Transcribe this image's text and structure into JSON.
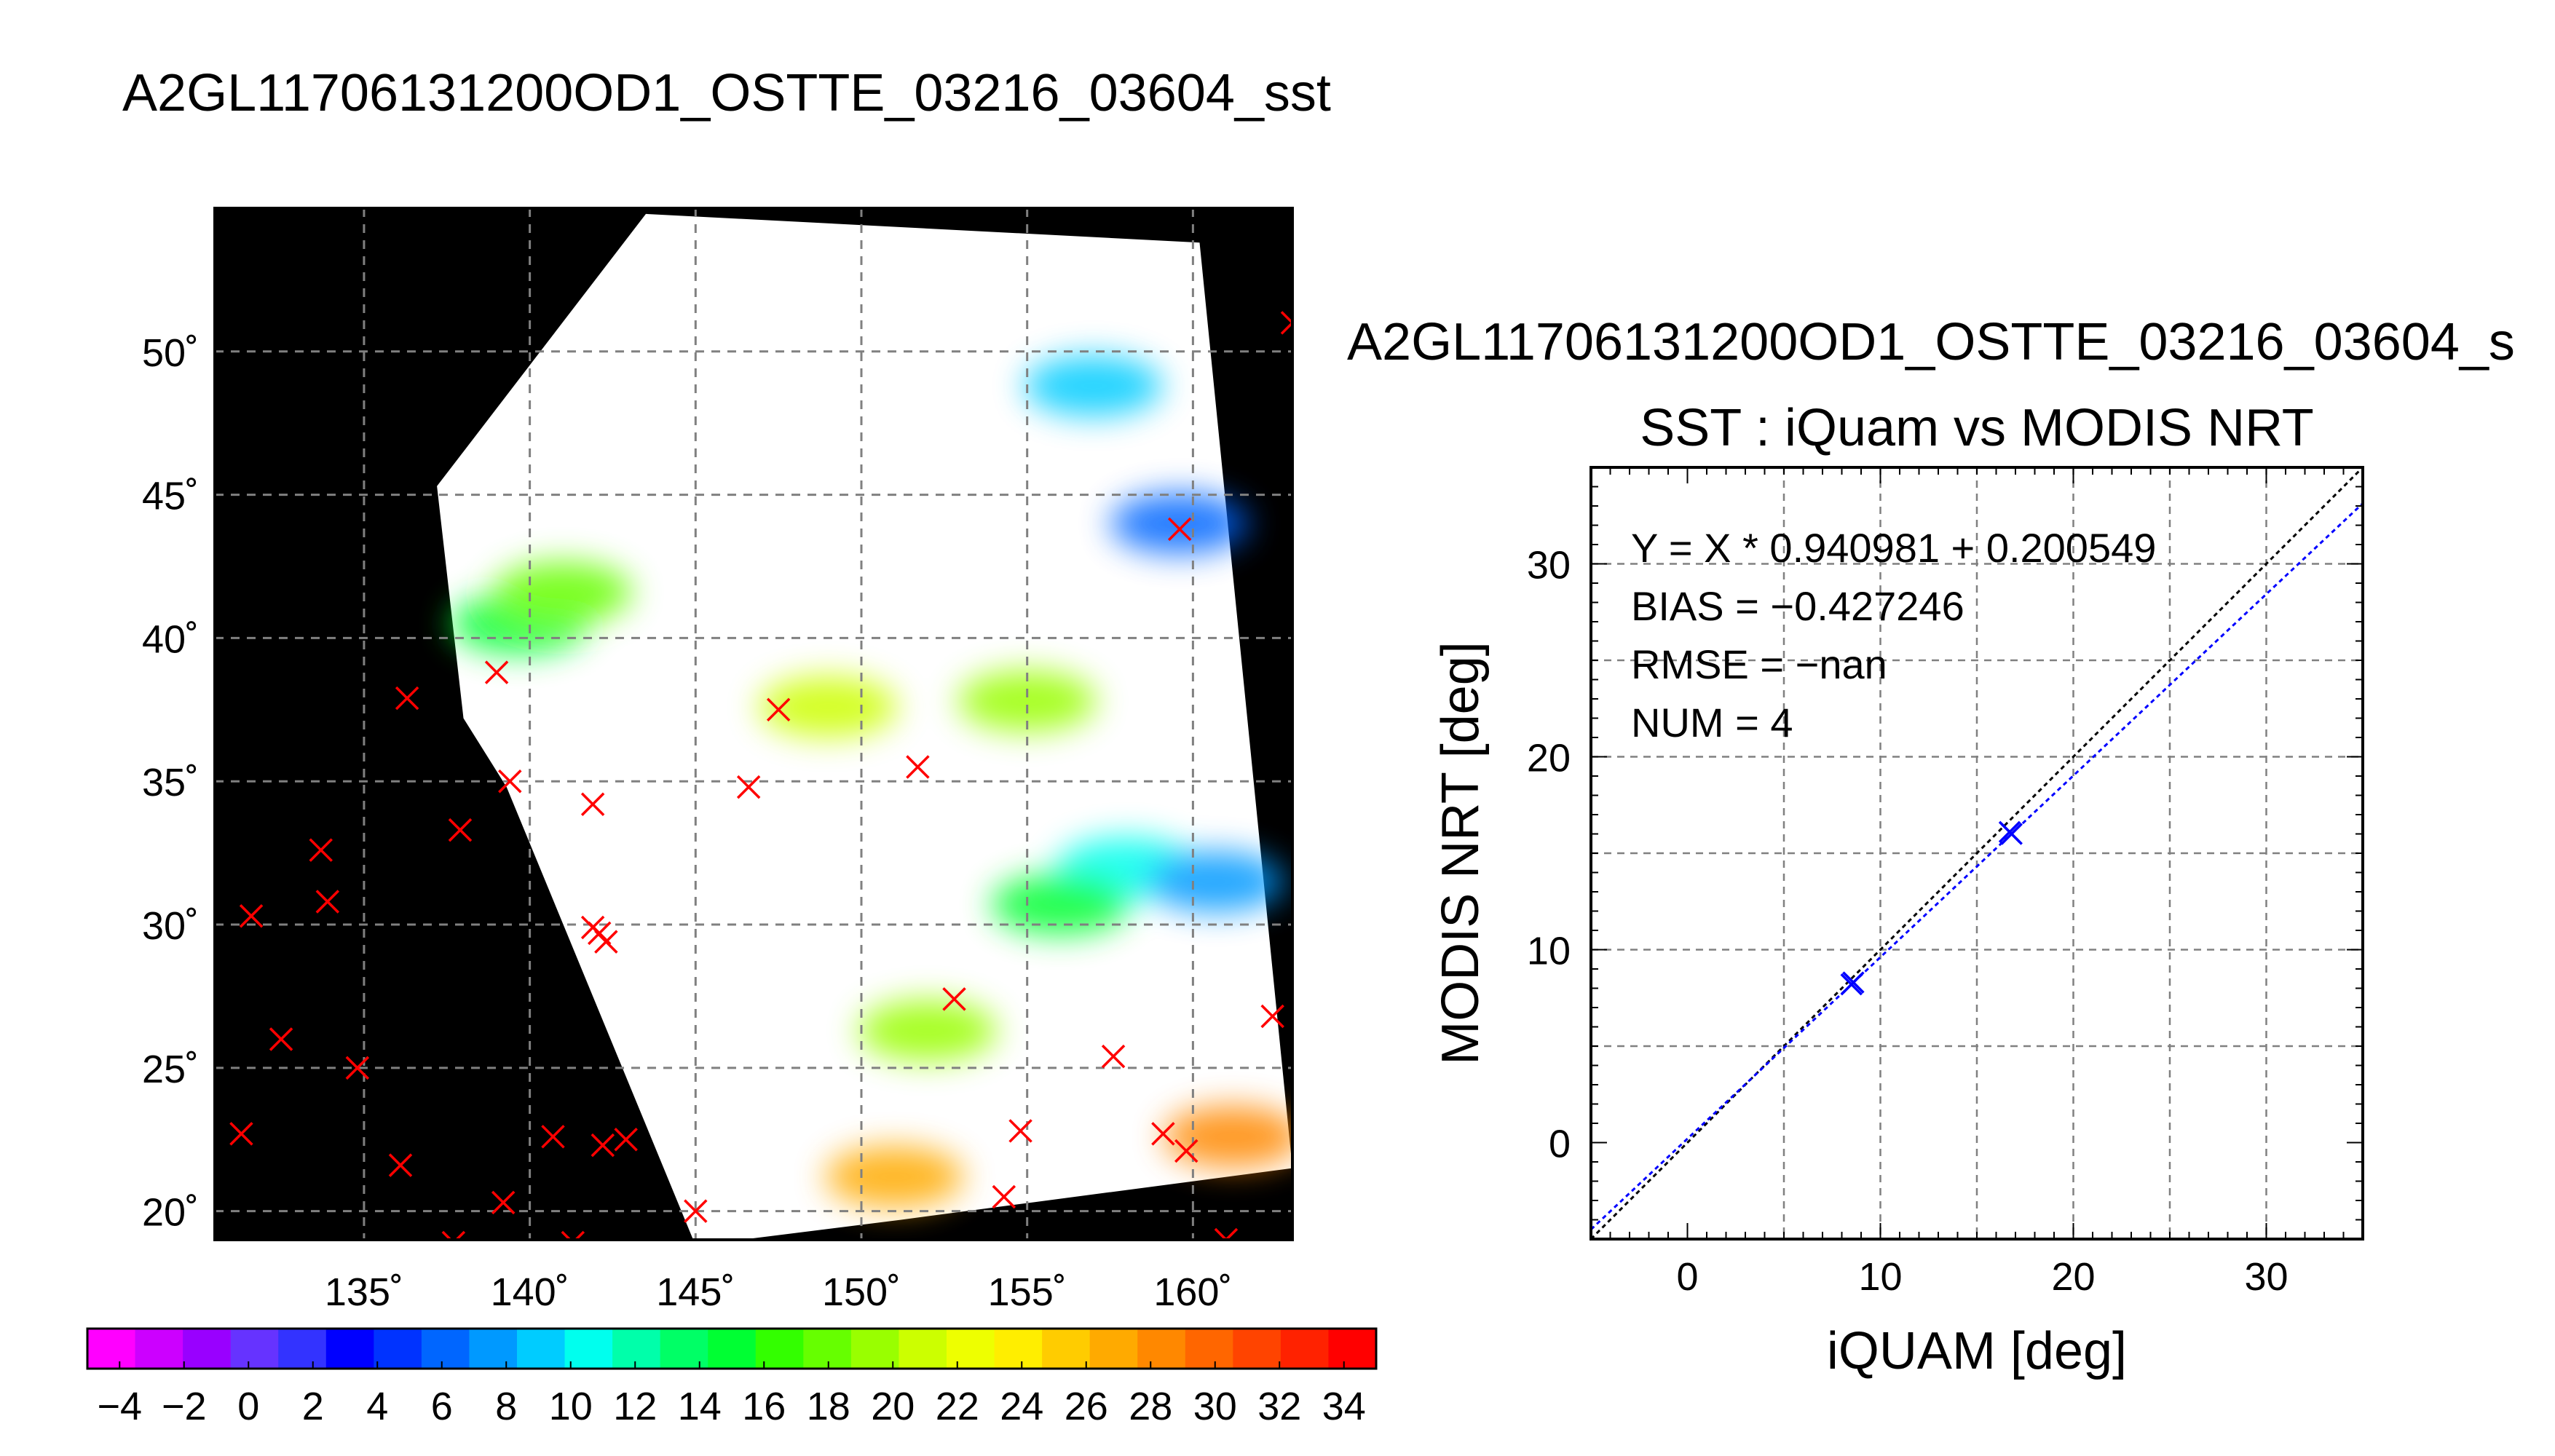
{
  "figure": {
    "title": "A2GL11706131200OD1_OSTTE_03216_03604_sst",
    "scatter_title": "A2GL11706131200OD1_OSTTE_03216_03604_s"
  },
  "chart_data": [
    {
      "type": "scatter",
      "name": "map",
      "title": "",
      "xlabel": "",
      "ylabel": "",
      "xlim": [
        130.5,
        163
      ],
      "ylim": [
        19,
        55
      ],
      "x_ticks": [
        135,
        140,
        145,
        150,
        155,
        160
      ],
      "x_tick_labels": [
        "135˚",
        "140˚",
        "145˚",
        "150˚",
        "155˚",
        "160˚"
      ],
      "y_ticks": [
        20,
        25,
        30,
        35,
        40,
        45,
        50
      ],
      "y_tick_labels": [
        "20˚",
        "25˚",
        "30˚",
        "35˚",
        "40˚",
        "45˚",
        "50˚"
      ],
      "grid": true,
      "background": "#000000",
      "swath_color": "#ffffff",
      "swath_corners": [
        [
          137.2,
          45.3
        ],
        [
          143.5,
          54.8
        ],
        [
          160.2,
          53.8
        ],
        [
          163,
          21.5
        ],
        [
          151.2,
          19.7
        ],
        [
          145.0,
          18.8
        ],
        [
          139.3,
          34.8
        ],
        [
          138.0,
          37.2
        ]
      ],
      "sst_regions": [
        {
          "lon": 139.7,
          "lat": 40.5,
          "sst": 15
        },
        {
          "lon": 141.0,
          "lat": 41.6,
          "sst": 18
        },
        {
          "lon": 149.0,
          "lat": 37.6,
          "sst": 21
        },
        {
          "lon": 155.0,
          "lat": 37.8,
          "sst": 20
        },
        {
          "lon": 158.0,
          "lat": 32.0,
          "sst": 11
        },
        {
          "lon": 160.7,
          "lat": 31.5,
          "sst": 8
        },
        {
          "lon": 159.6,
          "lat": 44.0,
          "sst": 6
        },
        {
          "lon": 156.0,
          "lat": 30.7,
          "sst": 15
        },
        {
          "lon": 152.0,
          "lat": 26.3,
          "sst": 19
        },
        {
          "lon": 161.2,
          "lat": 22.6,
          "sst": 28
        },
        {
          "lon": 151.0,
          "lat": 21.2,
          "sst": 27
        },
        {
          "lon": 157.0,
          "lat": 48.8,
          "sst": 9
        }
      ],
      "series": [
        {
          "name": "iQuam",
          "marker": "x",
          "color": "#ff0000",
          "points": [
            [
              131.3,
              22.7
            ],
            [
              131.6,
              30.3
            ],
            [
              132.5,
              26.0
            ],
            [
              133.7,
              32.6
            ],
            [
              133.9,
              30.8
            ],
            [
              134.8,
              25.0
            ],
            [
              136.1,
              21.6
            ],
            [
              136.3,
              37.9
            ],
            [
              137.9,
              33.3
            ],
            [
              137.7,
              18.9
            ],
            [
              139.2,
              20.3
            ],
            [
              139.4,
              35.0
            ],
            [
              140.7,
              22.6
            ],
            [
              141.3,
              18.9
            ],
            [
              141.9,
              34.2
            ],
            [
              141.9,
              29.9
            ],
            [
              142.1,
              29.7
            ],
            [
              142.3,
              29.4
            ],
            [
              142.2,
              22.3
            ],
            [
              142.9,
              22.5
            ],
            [
              145.0,
              20.0
            ],
            [
              146.6,
              34.8
            ],
            [
              147.5,
              37.5
            ],
            [
              151.7,
              35.5
            ],
            [
              152.8,
              27.4
            ],
            [
              154.3,
              20.5
            ],
            [
              154.8,
              22.8
            ],
            [
              157.6,
              25.4
            ],
            [
              159.1,
              22.7
            ],
            [
              159.8,
              22.1
            ],
            [
              162.4,
              26.8
            ],
            [
              163.0,
              51.0
            ],
            [
              161.0,
              19.0
            ],
            [
              139.0,
              38.8
            ],
            [
              159.6,
              43.8
            ]
          ]
        }
      ]
    },
    {
      "type": "colorbar",
      "name": "sst-colorbar",
      "ticks": [
        -4,
        -2,
        0,
        2,
        4,
        6,
        8,
        10,
        12,
        14,
        16,
        18,
        20,
        22,
        24,
        26,
        28,
        30,
        32,
        34
      ],
      "tick_labels": [
        "−4",
        "−2",
        "0",
        "2",
        "4",
        "6",
        "8",
        "10",
        "12",
        "14",
        "16",
        "18",
        "20",
        "22",
        "24",
        "26",
        "28",
        "30",
        "32",
        "34"
      ],
      "range": [
        -5,
        35
      ],
      "colors": [
        "#ff00ff",
        "#cc00ff",
        "#9900ff",
        "#6633ff",
        "#3333ff",
        "#0000ff",
        "#0033ff",
        "#0066ff",
        "#0099ff",
        "#00ccff",
        "#00ffee",
        "#00ffaa",
        "#00ff66",
        "#00ff33",
        "#33ff00",
        "#66ff00",
        "#99ff00",
        "#ccff00",
        "#eeff00",
        "#ffee00",
        "#ffcc00",
        "#ffaa00",
        "#ff8800",
        "#ff6600",
        "#ff4400",
        "#ff2200",
        "#ff0000"
      ]
    },
    {
      "type": "scatter",
      "name": "iquam-vs-modis",
      "title": "SST : iQuam vs MODIS NRT",
      "xlabel": "iQUAM [deg]",
      "ylabel": "MODIS NRT [deg]",
      "xlim": [
        -5,
        35
      ],
      "ylim": [
        -5,
        35
      ],
      "x_ticks": [
        0,
        10,
        20,
        30
      ],
      "y_ticks": [
        0,
        10,
        20,
        30
      ],
      "grid": true,
      "stats": [
        "Y = X * 0.940981 + 0.200549",
        "BIAS = −0.427246",
        "RMSE = −nan",
        "NUM = 4"
      ],
      "regression": {
        "slope": 0.940981,
        "intercept": 0.200549,
        "color": "#0000ff"
      },
      "identity_line_color": "#000000",
      "series": [
        {
          "name": "",
          "marker": "x",
          "color": "#0000ff",
          "points": [
            [
              8.5,
              8.2
            ],
            [
              8.6,
              8.3
            ],
            [
              16.7,
              16.1
            ],
            [
              16.8,
              16.0
            ]
          ]
        }
      ]
    }
  ]
}
